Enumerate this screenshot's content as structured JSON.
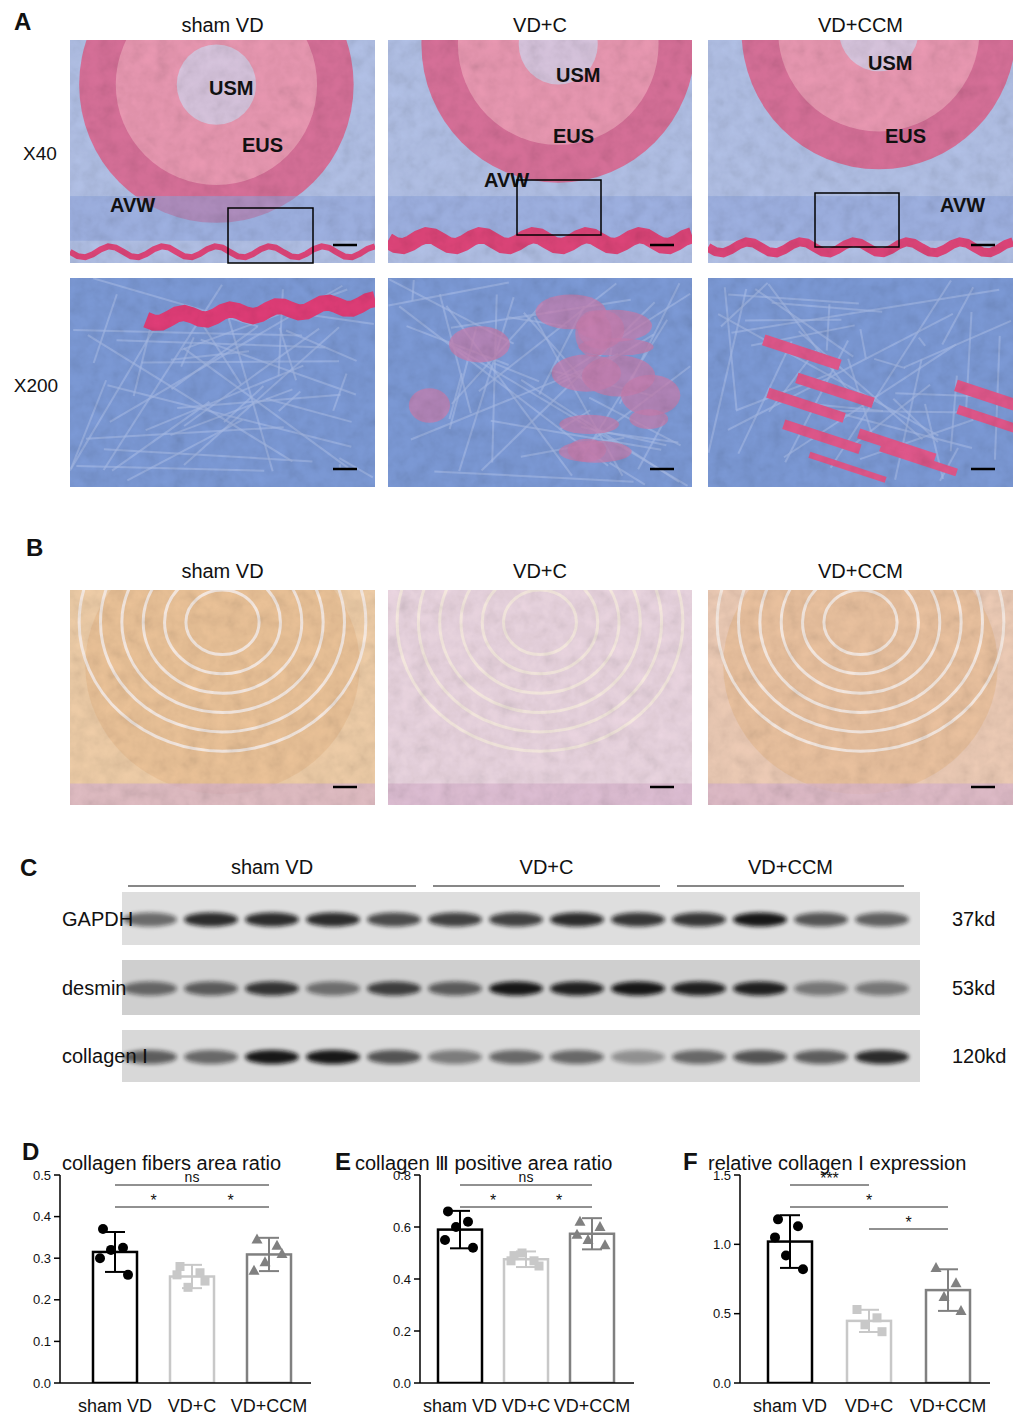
{
  "chart_data": [
    {
      "type": "bar",
      "title": "collagen fibers area ratio",
      "categories": [
        "sham VD",
        "VD+C",
        "VD+CCM"
      ],
      "values": [
        0.315,
        0.256,
        0.309
      ],
      "errors": [
        0.048,
        0.028,
        0.04
      ],
      "points": [
        [
          0.37,
          0.325,
          0.32,
          0.26,
          0.3
        ],
        [
          0.28,
          0.265,
          0.23,
          0.245,
          0.26
        ],
        [
          0.345,
          0.33,
          0.29,
          0.31,
          0.27
        ]
      ],
      "colors": [
        "#000000",
        "#c8c8c8",
        "#808080"
      ],
      "ylim": [
        0,
        0.5
      ],
      "yticks": [
        {
          "value": 0,
          "label": "0.0"
        },
        0.1,
        0.2,
        0.3,
        0.4,
        0.5
      ],
      "comparisons": [
        {
          "from": 0,
          "to": 2,
          "label": "ns"
        },
        {
          "from": 0,
          "to": 1,
          "label": "*"
        },
        {
          "from": 1,
          "to": 2,
          "label": "*"
        }
      ]
    },
    {
      "type": "bar",
      "title": "collagen Ⅲ positive area ratio",
      "categories": [
        "sham VD",
        "VD+C",
        "VD+CCM"
      ],
      "values": [
        0.59,
        0.476,
        0.574
      ],
      "errors": [
        0.072,
        0.03,
        0.06
      ],
      "points": [
        [
          0.66,
          0.62,
          0.6,
          0.52,
          0.55
        ],
        [
          0.49,
          0.47,
          0.5,
          0.45,
          0.47
        ],
        [
          0.62,
          0.6,
          0.55,
          0.53,
          0.57
        ]
      ],
      "colors": [
        "#000000",
        "#c8c8c8",
        "#808080"
      ],
      "ylim": [
        0,
        0.8
      ],
      "yticks": [
        {
          "value": 0,
          "label": "0.0"
        },
        0.2,
        0.4,
        0.6,
        0.8
      ],
      "comparisons": [
        {
          "from": 0,
          "to": 2,
          "label": "ns"
        },
        {
          "from": 0,
          "to": 1,
          "label": "*"
        },
        {
          "from": 1,
          "to": 2,
          "label": "*"
        }
      ]
    },
    {
      "type": "bar",
      "title": "relative collagen Ⅰ expression",
      "categories": [
        "sham VD",
        "VD+C",
        "VD+CCM"
      ],
      "values": [
        1.02,
        0.448,
        0.67
      ],
      "errors": [
        0.19,
        0.08,
        0.15
      ],
      "points": [
        [
          1.18,
          1.13,
          0.92,
          0.82,
          1.05
        ],
        [
          0.53,
          0.47,
          0.42,
          0.37
        ],
        [
          0.83,
          0.72,
          0.62,
          0.52
        ]
      ],
      "colors": [
        "#000000",
        "#c8c8c8",
        "#808080"
      ],
      "ylim": [
        0,
        1.5
      ],
      "yticks": [
        {
          "value": 0,
          "label": "0.0"
        },
        0.5,
        {
          "value": 1,
          "label": "1.0"
        },
        1.5
      ],
      "comparisons": [
        {
          "from": 0,
          "to": 1,
          "label": "***"
        },
        {
          "from": 0,
          "to": 2,
          "label": "*"
        },
        {
          "from": 1,
          "to": 2,
          "label": "*"
        }
      ]
    }
  ],
  "figure": {
    "panel_labels": [
      "A",
      "B",
      "C",
      "D",
      "E",
      "F"
    ],
    "groups": [
      "sham VD",
      "VD+C",
      "VD+CCM"
    ],
    "magnifications": [
      "X40",
      "X200"
    ],
    "tissue_labels": [
      "USM",
      "EUS",
      "AVW"
    ],
    "blot": {
      "lanes_per_group": [
        5,
        4,
        4
      ],
      "proteins": [
        {
          "name": "GAPDH",
          "size": "37kd",
          "intensity": [
            0.55,
            0.85,
            0.85,
            0.85,
            0.7,
            0.75,
            0.75,
            0.85,
            0.8,
            0.8,
            0.95,
            0.65,
            0.6
          ]
        },
        {
          "name": "desmin",
          "size": "53kd",
          "intensity": [
            0.55,
            0.6,
            0.8,
            0.5,
            0.75,
            0.6,
            0.95,
            0.9,
            0.95,
            0.9,
            0.9,
            0.45,
            0.45
          ]
        },
        {
          "name": "collagen Ⅰ",
          "size": "120kd",
          "intensity": [
            0.6,
            0.55,
            0.95,
            0.95,
            0.65,
            0.45,
            0.55,
            0.55,
            0.35,
            0.55,
            0.65,
            0.6,
            0.85
          ]
        }
      ]
    }
  }
}
